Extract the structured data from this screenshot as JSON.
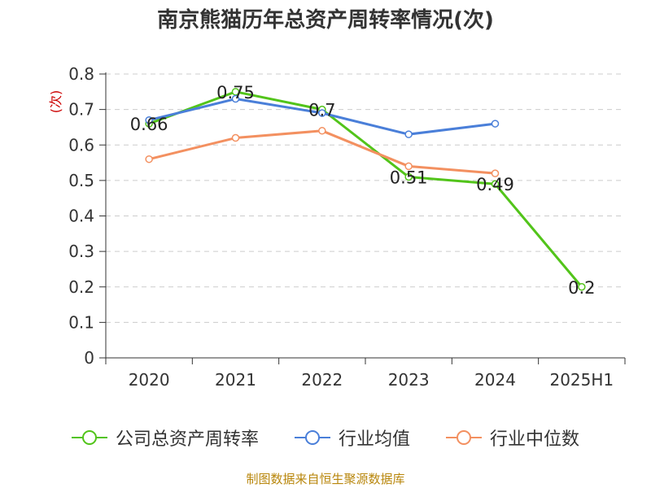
{
  "title": "南京熊猫历年总资产周转率情况(次)",
  "source": "制图数据来自恒生聚源数据库",
  "chart_data": {
    "type": "line",
    "ylabel": "(次)",
    "xlabel": "",
    "categories": [
      "2020",
      "2021",
      "2022",
      "2023",
      "2024",
      "2025H1"
    ],
    "ylim": [
      0,
      0.8
    ],
    "yticks": [
      "0",
      "0.1",
      "0.2",
      "0.3",
      "0.4",
      "0.5",
      "0.6",
      "0.7",
      "0.8"
    ],
    "grid": true,
    "legend_position": "bottom",
    "series": [
      {
        "name": "公司总资产周转率",
        "color": "#52c41a",
        "values": [
          0.66,
          0.75,
          0.7,
          0.51,
          0.49,
          0.2
        ],
        "labels": [
          "0.66",
          "0.75",
          "0.7",
          "0.51",
          "0.49",
          "0.2"
        ]
      },
      {
        "name": "行业均值",
        "color": "#4a7fd9",
        "values": [
          0.67,
          0.73,
          0.69,
          0.63,
          0.66,
          null
        ]
      },
      {
        "name": "行业中位数",
        "color": "#f39060",
        "values": [
          0.56,
          0.62,
          0.64,
          0.54,
          0.52,
          null
        ]
      }
    ]
  }
}
